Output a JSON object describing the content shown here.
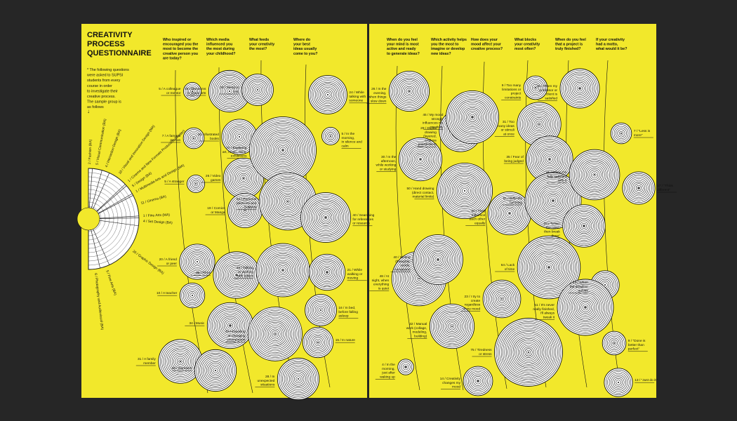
{
  "colors": {
    "page": "#f2e82b",
    "ink": "#111111",
    "background": "#262626"
  },
  "title": {
    "lines": [
      "CREATIVITY",
      "PROCESS",
      "QUESTIONNAIRE"
    ]
  },
  "intro": {
    "lines": [
      "* The following questions",
      "were asked to SUPSI",
      "students from every",
      "course in order",
      "to investigate their",
      "creative process.",
      "The sample group is",
      "as follows"
    ]
  },
  "sample_group": [
    {
      "count": "2",
      "course": "Fashion (BA)"
    },
    {
      "count": "5",
      "course": "Visual Communication (BA)"
    },
    {
      "count": "4",
      "course": "Interaction Design (BA)"
    },
    {
      "count": "10",
      "course": "Visual and Innovation Design (MA)"
    },
    {
      "count": "1",
      "course": "Cinema and New Formats Production (Master)"
    },
    {
      "count": "5",
      "course": "Design (BA)"
    },
    {
      "count": "1",
      "course": "Multimedia Arts and Design (MA)"
    },
    {
      "count": "11",
      "course": "Cinema (BA)"
    },
    {
      "count": "1",
      "course": "Fine Arts (MA)"
    },
    {
      "count": "4",
      "course": "Set Design (BA)"
    },
    {
      "count": "26",
      "course": "Graphic Design (BA)"
    },
    {
      "count": "5",
      "course": "Fine Arts (BA)"
    },
    {
      "count": "6",
      "course": "Photography and Audiovisual (BA)"
    }
  ],
  "questions": {
    "left": [
      {
        "lines": [
          "Who inspired or",
          "encouraged you the",
          "most to become the",
          "creative person you",
          "are today?"
        ]
      },
      {
        "lines": [
          "Which media",
          "influenced you",
          "the most during",
          "your childhood?"
        ]
      },
      {
        "lines": [
          "What feeds",
          "your creativity",
          "the most?"
        ]
      },
      {
        "lines": [
          "Where do",
          "your best",
          "ideas usually",
          "come to you?"
        ]
      }
    ],
    "right": [
      {
        "lines": [
          "When do you feel",
          "your mind is most",
          "active and ready",
          "to generate ideas?"
        ]
      },
      {
        "lines": [
          "Which activity helps",
          "you the most to",
          "imagine or develop",
          "new ideas?"
        ]
      },
      {
        "lines": [
          "How does your",
          "mood affect your",
          "creative process?"
        ]
      },
      {
        "lines": [
          "What blocks",
          "your creativity",
          "most often?"
        ]
      },
      {
        "lines": [
          "When do you feel",
          "that a project is",
          "truly finished?"
        ]
      },
      {
        "lines": [
          "If your creativity",
          "had a motto,",
          "what would it be?"
        ]
      }
    ]
  },
  "answers": [
    {
      "q": 1,
      "count": "5",
      "lines": [
        "A colleague",
        "or mentor"
      ]
    },
    {
      "q": 1,
      "count": "7",
      "lines": [
        "A famous",
        "person"
      ]
    },
    {
      "q": 1,
      "count": "5",
      "lines": [
        "A stranger"
      ]
    },
    {
      "q": 1,
      "count": "20",
      "lines": [
        "A friend",
        "or peer"
      ]
    },
    {
      "q": 1,
      "count": "10",
      "lines": [
        "A teacher"
      ]
    },
    {
      "q": 1,
      "count": "31",
      "lines": [
        "A family",
        "member"
      ]
    },
    {
      "q": 2,
      "count": "28",
      "lines": [
        "Museums",
        "or visual arts"
      ]
    },
    {
      "q": 2,
      "count": "20",
      "lines": [
        "Illustrated",
        "books"
      ]
    },
    {
      "q": 2,
      "count": "26",
      "lines": [
        "Video",
        "games"
      ]
    },
    {
      "q": 2,
      "count": "19",
      "lines": [
        "Comics",
        "or Manga"
      ]
    },
    {
      "q": 2,
      "count": "35",
      "lines": [
        "Films"
      ]
    },
    {
      "q": 2,
      "count": "34",
      "lines": [
        "Music"
      ]
    },
    {
      "q": 2,
      "count": "28",
      "lines": [
        "Cartoons"
      ]
    },
    {
      "q": 3,
      "count": "16",
      "lines": [
        "Sleep or",
        "rest"
      ]
    },
    {
      "q": 3,
      "count": "72",
      "lines": [
        "Exploring",
        "art, music, films,",
        "exhibitions"
      ]
    },
    {
      "q": 3,
      "count": "53",
      "lines": [
        "Personal",
        "passions and",
        "hobbies"
      ]
    },
    {
      "q": 3,
      "count": "46",
      "lines": [
        "Talking",
        "or working",
        "with others"
      ]
    },
    {
      "q": 3,
      "count": "47",
      "lines": [
        "Traveling",
        "or changing",
        "environment"
      ]
    },
    {
      "q": 3,
      "count": "28",
      "lines": [
        "In",
        "unexpected",
        "situations"
      ]
    },
    {
      "q": 4,
      "count": "24",
      "lines": [
        "While",
        "talking with",
        "someone"
      ]
    },
    {
      "q": 4,
      "count": "5",
      "lines": [
        "In the",
        "morning,",
        "in silence and",
        "calm"
      ]
    },
    {
      "q": 4,
      "count": "40",
      "lines": [
        "Searching",
        "for references",
        "or research"
      ]
    },
    {
      "q": 4,
      "count": "21",
      "lines": [
        "While",
        "walking or",
        "moving"
      ]
    },
    {
      "q": 4,
      "count": "16",
      "lines": [
        "In bed,",
        "before falling",
        "asleep"
      ]
    },
    {
      "q": 4,
      "count": "15",
      "lines": [
        "In nature"
      ]
    },
    {
      "q": 5,
      "count": "26",
      "lines": [
        "In the",
        "evening,",
        "when things",
        "slow down"
      ]
    },
    {
      "q": 5,
      "count": "30",
      "lines": [
        "In the",
        "afternoon,",
        "while working",
        "or studying"
      ]
    },
    {
      "q": 5,
      "count": "48",
      "lines": [
        "At",
        "night, when",
        "everything",
        "is quiet"
      ]
    },
    {
      "q": 5,
      "count": "4",
      "lines": [
        "In the",
        "morning,",
        "just after",
        "waking up"
      ]
    },
    {
      "q": 6,
      "count": "29",
      "lines": [
        "Digital",
        "drawing",
        "(layered,",
        "endless",
        "possibilities)"
      ]
    },
    {
      "q": 6,
      "count": "50",
      "lines": [
        "Hand drawing",
        "(direct contact,",
        "material limits)"
      ]
    },
    {
      "q": 6,
      "count": "40",
      "lines": [
        "Writing",
        "(thoughts,",
        "words,",
        "narratives)"
      ]
    },
    {
      "q": 6,
      "count": "32",
      "lines": [
        "Manual",
        "work (collage,",
        "modeling,",
        "building)"
      ]
    },
    {
      "q": 7,
      "count": "45",
      "lines": [
        "My mood",
        "strongly",
        "influences my",
        "creativity"
      ]
    },
    {
      "q": 7,
      "count": "30",
      "lines": [
        "They",
        "influence",
        "each other",
        "equally"
      ]
    },
    {
      "q": 7,
      "count": "23",
      "lines": [
        "I try to",
        "create",
        "regardless",
        "of my mood"
      ]
    },
    {
      "q": 7,
      "count": "14",
      "lines": [
        "Creativity",
        "changes my",
        "mood"
      ]
    },
    {
      "q": 8,
      "count": "9",
      "lines": [
        "Too many",
        "limitations or",
        "project",
        "constraints"
      ]
    },
    {
      "q": 8,
      "count": "31",
      "lines": [
        "Too",
        "many ideas",
        "or stimuli",
        "at once"
      ]
    },
    {
      "q": 8,
      "count": "35",
      "lines": [
        "Fear of",
        "being judged"
      ]
    },
    {
      "q": 8,
      "count": "51",
      "lines": [
        "Difficulty",
        "focusing"
      ]
    },
    {
      "q": 8,
      "count": "64",
      "lines": [
        "Lack",
        "of time"
      ]
    },
    {
      "q": 8,
      "count": "75",
      "lines": [
        "Tiredness",
        "or stress"
      ]
    },
    {
      "q": 9,
      "count": "25",
      "lines": [
        "When my",
        "professor or",
        "client is",
        "satisfied"
      ]
    },
    {
      "q": 9,
      "count": "41",
      "lines": [
        "When I'm",
        "fully satisfied",
        "with it"
      ]
    },
    {
      "q": 9,
      "count": "29",
      "lines": [
        "\"Learn",
        "the rules,",
        "then break",
        "them\""
      ]
    },
    {
      "q": 9,
      "count": "13",
      "lines": [
        "When",
        "the deadline",
        "arrives"
      ]
    },
    {
      "q": 9,
      "count": "51",
      "lines": [
        "It's never",
        "really finished,",
        "I'll always",
        "tweak it"
      ]
    },
    {
      "q": 10,
      "count": "7",
      "lines": [
        "\"Less is",
        "more\""
      ]
    },
    {
      "q": 10,
      "count": "17",
      "lines": [
        "\"Think",
        "different\""
      ]
    },
    {
      "q": 10,
      "count": "9",
      "lines": [
        "\"Done is",
        "better than",
        "perfect\""
      ]
    },
    {
      "q": 10,
      "count": "13",
      "lines": [
        "\"Just do it!\""
      ]
    }
  ]
}
